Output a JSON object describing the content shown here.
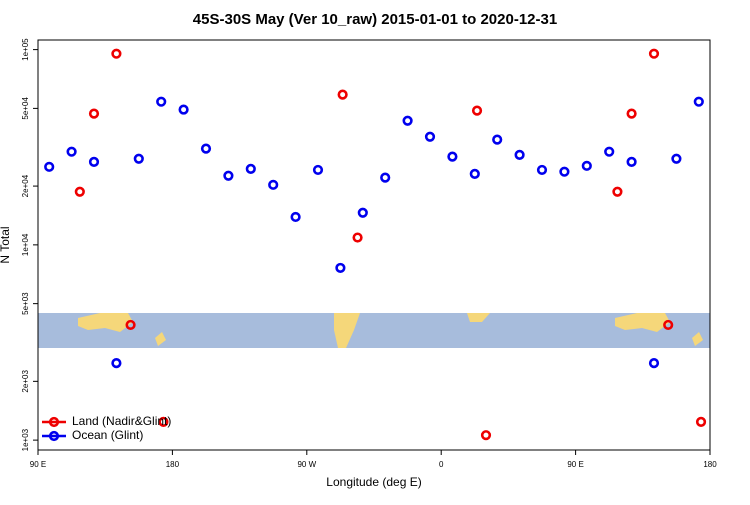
{
  "chart_data": {
    "type": "scatter",
    "title": "45S-30S May (Ver 10_raw)   2015-01-01 to 2020-12-31",
    "x_label": "Longitude (deg E)",
    "y_label": "N Total",
    "log_y": true,
    "legend": "bottom-left",
    "xlim": [
      90,
      540
    ],
    "ylim": [
      890,
      112000
    ],
    "xticks": [
      {
        "value": 90,
        "label": "90 E"
      },
      {
        "value": 180,
        "label": "180"
      },
      {
        "value": 270,
        "label": "90 W"
      },
      {
        "value": 360,
        "label": "0"
      },
      {
        "value": 450,
        "label": "90 E"
      },
      {
        "value": 540,
        "label": "180"
      }
    ],
    "yticks": [
      {
        "value": 1000,
        "label": "1e+03"
      },
      {
        "value": 2000,
        "label": "2e+03"
      },
      {
        "value": 5000,
        "label": "5e+03"
      },
      {
        "value": 10000,
        "label": "1e+04"
      },
      {
        "value": 20000,
        "label": "2e+04"
      },
      {
        "value": 50000,
        "label": "5e+04"
      },
      {
        "value": 100000,
        "label": "1e+05"
      }
    ],
    "series": [
      {
        "name": "Land (Nadir&Glint)",
        "color": "#ee0000",
        "x": [
          118,
          127.5,
          142.5,
          152,
          174,
          294,
          304,
          384,
          390,
          478,
          487.5,
          502.5,
          512,
          534
        ],
        "values": [
          18700,
          47000,
          95300,
          3890,
          1240,
          58800,
          10900,
          48700,
          1060,
          18700,
          47000,
          95300,
          3890,
          1240
        ]
      },
      {
        "name": "Ocean (Glint)",
        "color": "#0000ee",
        "x": [
          97.5,
          112.5,
          127.5,
          142.5,
          157.5,
          172.5,
          187.5,
          202.5,
          217.5,
          232.5,
          247.5,
          262.5,
          277.5,
          292.5,
          307.5,
          322.5,
          337.5,
          352.5,
          367.5,
          382.5,
          397.5,
          412.5,
          427.5,
          442.5,
          457.5,
          472.5,
          487.5,
          502.5,
          517.5,
          532.5
        ],
        "values": [
          25100,
          30000,
          26600,
          2480,
          27600,
          54100,
          49300,
          31100,
          22600,
          24500,
          20300,
          13900,
          24200,
          7620,
          14600,
          22100,
          43200,
          35800,
          28300,
          23100,
          34600,
          28900,
          24200,
          23700,
          25400,
          30000,
          26600,
          2480,
          27600,
          54100
        ]
      }
    ]
  }
}
